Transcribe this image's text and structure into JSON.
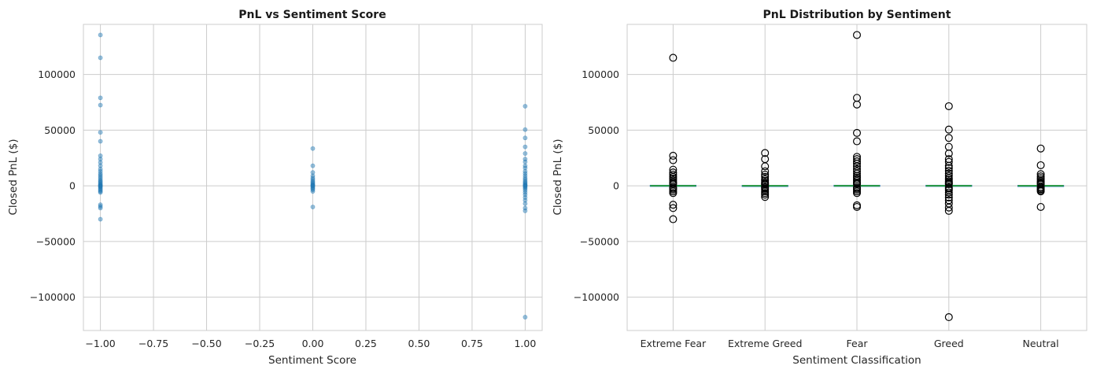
{
  "chart_data": [
    {
      "type": "scatter",
      "title": "PnL vs Sentiment Score",
      "xlabel": "Sentiment Score",
      "ylabel": "Closed PnL ($)",
      "xlim": [
        -1.08,
        1.08
      ],
      "ylim": [
        -130000,
        145000
      ],
      "xticks": [
        -1.0,
        -0.75,
        -0.5,
        -0.25,
        0.0,
        0.25,
        0.5,
        0.75,
        1.0
      ],
      "xtick_labels": [
        "−1.00",
        "−0.75",
        "−0.50",
        "−0.25",
        "0.00",
        "0.25",
        "0.50",
        "0.75",
        "1.00"
      ],
      "yticks": [
        -100000,
        -50000,
        0,
        50000,
        100000
      ],
      "ytick_labels": [
        "−100000",
        "−50000",
        "0",
        "50000",
        "100000"
      ],
      "grid": true,
      "color": "#1f77b4",
      "points": [
        {
          "x": -1,
          "y": 135500
        },
        {
          "x": -1,
          "y": 115000
        },
        {
          "x": -1,
          "y": 79000
        },
        {
          "x": -1,
          "y": 72500
        },
        {
          "x": -1,
          "y": 48000
        },
        {
          "x": -1,
          "y": 40000
        },
        {
          "x": -1,
          "y": 27000
        },
        {
          "x": -1,
          "y": 24000
        },
        {
          "x": -1,
          "y": 21000
        },
        {
          "x": -1,
          "y": 18000
        },
        {
          "x": -1,
          "y": 15000
        },
        {
          "x": -1,
          "y": 13000
        },
        {
          "x": -1,
          "y": 11000
        },
        {
          "x": -1,
          "y": 9500
        },
        {
          "x": -1,
          "y": 8000
        },
        {
          "x": -1,
          "y": 6500
        },
        {
          "x": -1,
          "y": 5000
        },
        {
          "x": -1,
          "y": 4000
        },
        {
          "x": -1,
          "y": 3000
        },
        {
          "x": -1,
          "y": 2000
        },
        {
          "x": -1,
          "y": 1000
        },
        {
          "x": -1,
          "y": 500
        },
        {
          "x": -1,
          "y": 0
        },
        {
          "x": -1,
          "y": -500
        },
        {
          "x": -1,
          "y": -1000
        },
        {
          "x": -1,
          "y": -2000
        },
        {
          "x": -1,
          "y": -3000
        },
        {
          "x": -1,
          "y": -4000
        },
        {
          "x": -1,
          "y": -5000
        },
        {
          "x": -1,
          "y": -6000
        },
        {
          "x": -1,
          "y": -17000
        },
        {
          "x": -1,
          "y": -18500
        },
        {
          "x": -1,
          "y": -20000
        },
        {
          "x": -1,
          "y": -30000
        },
        {
          "x": 0,
          "y": 33500
        },
        {
          "x": 0,
          "y": 18000
        },
        {
          "x": 0,
          "y": 12000
        },
        {
          "x": 0,
          "y": 9000
        },
        {
          "x": 0,
          "y": 7000
        },
        {
          "x": 0,
          "y": 5500
        },
        {
          "x": 0,
          "y": 4000
        },
        {
          "x": 0,
          "y": 3000
        },
        {
          "x": 0,
          "y": 2000
        },
        {
          "x": 0,
          "y": 1000
        },
        {
          "x": 0,
          "y": 500
        },
        {
          "x": 0,
          "y": 0
        },
        {
          "x": 0,
          "y": -500
        },
        {
          "x": 0,
          "y": -1500
        },
        {
          "x": 0,
          "y": -2500
        },
        {
          "x": 0,
          "y": -3500
        },
        {
          "x": 0,
          "y": -5000
        },
        {
          "x": 0,
          "y": -19000
        },
        {
          "x": 1,
          "y": 71500
        },
        {
          "x": 1,
          "y": 50500
        },
        {
          "x": 1,
          "y": 43000
        },
        {
          "x": 1,
          "y": 35000
        },
        {
          "x": 1,
          "y": 29000
        },
        {
          "x": 1,
          "y": 24000
        },
        {
          "x": 1,
          "y": 21500
        },
        {
          "x": 1,
          "y": 18000
        },
        {
          "x": 1,
          "y": 16000
        },
        {
          "x": 1,
          "y": 13000
        },
        {
          "x": 1,
          "y": 11000
        },
        {
          "x": 1,
          "y": 9000
        },
        {
          "x": 1,
          "y": 7000
        },
        {
          "x": 1,
          "y": 5500
        },
        {
          "x": 1,
          "y": 4000
        },
        {
          "x": 1,
          "y": 3000
        },
        {
          "x": 1,
          "y": 2000
        },
        {
          "x": 1,
          "y": 1000
        },
        {
          "x": 1,
          "y": 500
        },
        {
          "x": 1,
          "y": 0
        },
        {
          "x": 1,
          "y": -500
        },
        {
          "x": 1,
          "y": -1500
        },
        {
          "x": 1,
          "y": -2500
        },
        {
          "x": 1,
          "y": -4000
        },
        {
          "x": 1,
          "y": -6000
        },
        {
          "x": 1,
          "y": -8000
        },
        {
          "x": 1,
          "y": -10500
        },
        {
          "x": 1,
          "y": -13000
        },
        {
          "x": 1,
          "y": -16000
        },
        {
          "x": 1,
          "y": -20000
        },
        {
          "x": 1,
          "y": -22500
        },
        {
          "x": 1,
          "y": -118000
        }
      ]
    },
    {
      "type": "box",
      "title": "PnL Distribution by Sentiment",
      "xlabel": "Sentiment Classification",
      "ylabel": "Closed PnL ($)",
      "ylim": [
        -130000,
        145000
      ],
      "yticks": [
        -100000,
        -50000,
        0,
        50000,
        100000
      ],
      "ytick_labels": [
        "−100000",
        "−50000",
        "0",
        "50000",
        "100000"
      ],
      "grid": true,
      "median_color": "#2ca02c",
      "categories": [
        "Extreme Fear",
        "Extreme Greed",
        "Fear",
        "Greed",
        "Neutral"
      ],
      "boxes": [
        {
          "q1": -300,
          "median": 0,
          "q3": 400,
          "whisker_low": -700,
          "whisker_high": 900,
          "outliers": [
            115000,
            27000,
            23000,
            14500,
            12000,
            10000,
            8000,
            6500,
            5000,
            3500,
            2500,
            1500,
            -1500,
            -2500,
            -3500,
            -5000,
            -6500,
            -17000,
            -20000,
            -30000
          ]
        },
        {
          "q1": -200,
          "median": 0,
          "q3": 300,
          "whisker_low": -600,
          "whisker_high": 700,
          "outliers": [
            29500,
            24000,
            17500,
            13000,
            10000,
            8000,
            6000,
            4500,
            3000,
            2000,
            1500,
            1000,
            -1000,
            -1500,
            -2500,
            -3500,
            -5000,
            -6500,
            -8000,
            -10000
          ]
        },
        {
          "q1": -300,
          "median": 0,
          "q3": 400,
          "whisker_low": -700,
          "whisker_high": 900,
          "outliers": [
            135500,
            79000,
            73000,
            47500,
            40000,
            26000,
            24000,
            22000,
            20000,
            17500,
            15000,
            13000,
            11000,
            9000,
            7500,
            6000,
            4500,
            3000,
            2000,
            1500,
            -1500,
            -2500,
            -3500,
            -5000,
            -6500,
            -17500,
            -19000
          ]
        },
        {
          "q1": -300,
          "median": 0,
          "q3": 400,
          "whisker_low": -700,
          "whisker_high": 900,
          "outliers": [
            71500,
            50500,
            43000,
            35000,
            29000,
            24000,
            21500,
            18000,
            16000,
            13500,
            11000,
            9000,
            7000,
            5500,
            4000,
            3000,
            2000,
            1500,
            -1500,
            -2500,
            -4000,
            -6000,
            -8000,
            -10500,
            -13000,
            -16000,
            -19500,
            -22500,
            -118000
          ]
        },
        {
          "q1": -200,
          "median": 0,
          "q3": 300,
          "whisker_low": -500,
          "whisker_high": 600,
          "outliers": [
            33500,
            18500,
            10500,
            8500,
            7000,
            5500,
            4000,
            3000,
            2000,
            1200,
            -1000,
            -2000,
            -3000,
            -4000,
            -5000,
            -19000
          ]
        }
      ]
    }
  ]
}
